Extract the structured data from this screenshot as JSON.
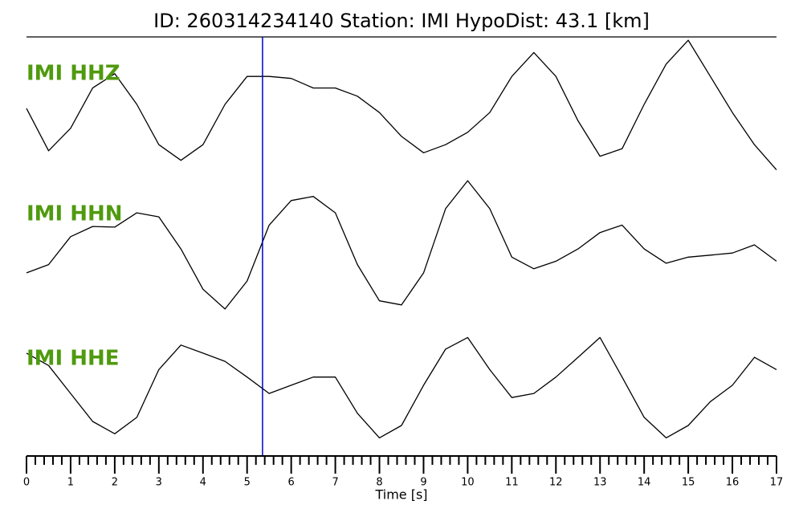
{
  "chart_data": {
    "type": "seismogram",
    "title": "ID: 260314234140   Station: IMI   HypoDist:    43.1 [km]",
    "x_label": "Time [s]",
    "xlim": [
      0,
      17
    ],
    "xticks": [
      0,
      1,
      2,
      3,
      4,
      5,
      6,
      7,
      8,
      9,
      10,
      11,
      12,
      13,
      14,
      15,
      16,
      17
    ],
    "xminorticks": [
      0.2,
      0.4,
      0.6,
      0.8,
      1.2,
      1.4,
      1.6,
      1.8,
      2.2,
      2.4,
      2.6,
      2.8,
      3.2,
      3.4,
      3.6,
      3.8,
      4.2,
      4.4,
      4.6,
      4.8,
      5.2,
      5.4,
      5.6,
      5.8,
      6.2,
      6.4,
      6.6,
      6.8,
      7.2,
      7.4,
      7.6,
      7.8,
      8.2,
      8.4,
      8.6,
      8.8,
      9.2,
      9.4,
      9.6,
      9.8,
      10.2,
      10.4,
      10.6,
      10.8,
      11.2,
      11.4,
      11.6,
      11.8,
      12.2,
      12.4,
      12.6,
      12.8,
      13.2,
      13.4,
      13.6,
      13.8,
      14.2,
      14.4,
      14.6,
      14.8,
      15.2,
      15.4,
      15.6,
      15.8,
      16.2,
      16.4,
      16.6,
      16.8
    ],
    "ylim": [
      -1,
      1
    ],
    "pick_x": 5.35,
    "pick_color": "#0000cc",
    "label_color": "#4f9a0f",
    "x": [
      0,
      0.5,
      1,
      1.5,
      2,
      2.5,
      3,
      3.5,
      4,
      4.5,
      5,
      5.5,
      6,
      6.5,
      7,
      7.5,
      8,
      8.5,
      9,
      9.5,
      10,
      10.5,
      11,
      11.5,
      12,
      12.5,
      13,
      13.5,
      14,
      14.5,
      15,
      15.5,
      16,
      16.5,
      17
    ],
    "series": [
      {
        "name": "IMI HHZ",
        "color": "#000000",
        "values": [
          -0.06,
          -0.68,
          -0.35,
          0.24,
          0.45,
          0,
          -0.59,
          -0.82,
          -0.59,
          0,
          0.41,
          0.41,
          0.38,
          0.24,
          0.24,
          0.12,
          -0.12,
          -0.47,
          -0.71,
          -0.59,
          -0.41,
          -0.12,
          0.41,
          0.76,
          0.41,
          -0.24,
          -0.76,
          -0.65,
          0,
          0.59,
          0.94,
          0.41,
          -0.12,
          -0.59,
          -0.96
        ]
      },
      {
        "name": "IMI HHN",
        "color": "#000000",
        "values": [
          -0.41,
          -0.29,
          0.12,
          0.27,
          0.26,
          0.47,
          0.41,
          -0.06,
          -0.65,
          -0.94,
          -0.53,
          0.29,
          0.65,
          0.71,
          0.47,
          -0.29,
          -0.82,
          -0.88,
          -0.41,
          0.53,
          0.94,
          0.53,
          -0.18,
          -0.35,
          -0.24,
          -0.06,
          0.18,
          0.29,
          -0.06,
          -0.27,
          -0.18,
          -0.15,
          -0.12,
          0,
          -0.24
        ]
      },
      {
        "name": "IMI HHE",
        "color": "#000000",
        "values": [
          0.53,
          0.35,
          -0.06,
          -0.47,
          -0.65,
          -0.41,
          0.29,
          0.65,
          0.53,
          0.41,
          0.18,
          -0.06,
          0.06,
          0.18,
          0.18,
          -0.35,
          -0.71,
          -0.53,
          0.06,
          0.59,
          0.76,
          0.29,
          -0.12,
          -0.06,
          0.18,
          0.47,
          0.76,
          0.18,
          -0.41,
          -0.71,
          -0.53,
          -0.18,
          0.06,
          0.47,
          0.29
        ]
      }
    ]
  }
}
